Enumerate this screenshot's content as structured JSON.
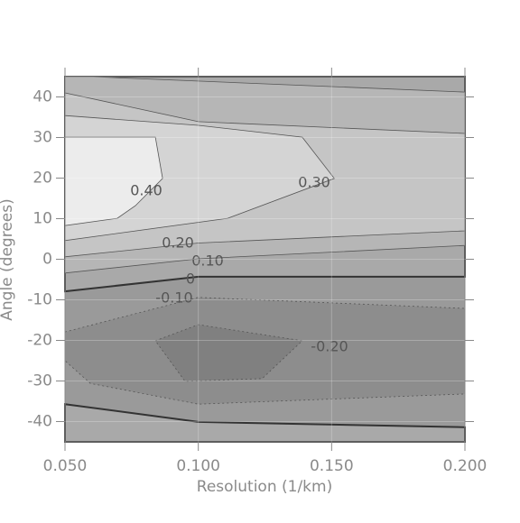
{
  "chart_data": {
    "type": "contour",
    "x_label": "Resolution (1/km)",
    "y_label": "Angle (degrees)",
    "xlim": [
      0.05,
      0.2
    ],
    "xticks": [
      {
        "value": 0.05,
        "label": "0.050"
      },
      {
        "value": 0.1,
        "label": "0.100"
      },
      {
        "value": 0.15,
        "label": "0.150"
      },
      {
        "value": 0.2,
        "label": "0.200"
      }
    ],
    "ylim": [
      -45,
      45
    ],
    "yticks": [
      -40,
      -30,
      -20,
      -10,
      0,
      10,
      20,
      30,
      40
    ],
    "grid": true,
    "background": "#9a9a9a",
    "contours": [
      {
        "level": 0,
        "color": "#a9a9a9",
        "paths": [
          {
            "x": [
              0.05,
              0.2,
              0.2,
              0.1,
              0.05
            ],
            "y": [
              45,
              45,
              -4.3,
              -4.3,
              -7.9
            ]
          },
          {
            "x": [
              0.05,
              0.1,
              0.2,
              0.2,
              0.05
            ],
            "y": [
              -35.7,
              -40.1,
              -41.4,
              -45,
              -45
            ]
          }
        ]
      },
      {
        "level": {
          "value": 0.1,
          "label": "0.10"
        },
        "color": "#b6b6b6",
        "paths": [
          {
            "x": [
              0.05,
              0.0595,
              0.2,
              0.2,
              0.1,
              0.05
            ],
            "y": [
              45,
              45,
              41.2,
              3.4,
              0.1,
              -3.4
            ]
          }
        ]
      },
      {
        "level": {
          "value": 0.2,
          "label": "0.20"
        },
        "color": "#c5c5c5",
        "paths": [
          {
            "x": [
              0.05,
              0.1,
              0.2,
              0.2,
              0.1,
              0.05
            ],
            "y": [
              41,
              33.9,
              31,
              7,
              4,
              0.6
            ]
          }
        ]
      },
      {
        "level": {
          "value": 0.3,
          "label": "0.30"
        },
        "color": "#d4d4d4",
        "paths": [
          {
            "x": [
              0.05,
              0.1,
              0.139,
              0.151,
              0.111,
              0.05
            ],
            "y": [
              35.4,
              33,
              30.1,
              19.9,
              10.1,
              4.6
            ]
          }
        ]
      },
      {
        "level": {
          "value": 0.4,
          "label": "0.40"
        },
        "color": "#ececec",
        "paths": [
          {
            "x": [
              0.05,
              0.0839,
              0.0866,
              0.0764,
              0.0696,
              0.05
            ],
            "y": [
              30.1,
              30.1,
              19.9,
              13.2,
              10.1,
              8.3
            ]
          }
        ]
      },
      {
        "level": {
          "value": -0.1,
          "label": "-0.10"
        },
        "color": "#8d8d8d",
        "paths": [
          {
            "x": [
              0.05,
              0.1,
              0.2,
              0.2,
              0.1,
              0.0595,
              0.05
            ],
            "y": [
              -17.9,
              -9.4,
              -12.1,
              -33.2,
              -35.7,
              -30.6,
              -25
            ]
          }
        ]
      },
      {
        "level": {
          "value": -0.2,
          "label": "-0.20"
        },
        "color": "#808080",
        "paths": [
          {
            "x": [
              0.0839,
              0.1,
              0.139,
              0.124,
              0.095
            ],
            "y": [
              -20.1,
              -16.1,
              -20.1,
              -29.4,
              -30.1
            ]
          }
        ]
      }
    ]
  }
}
